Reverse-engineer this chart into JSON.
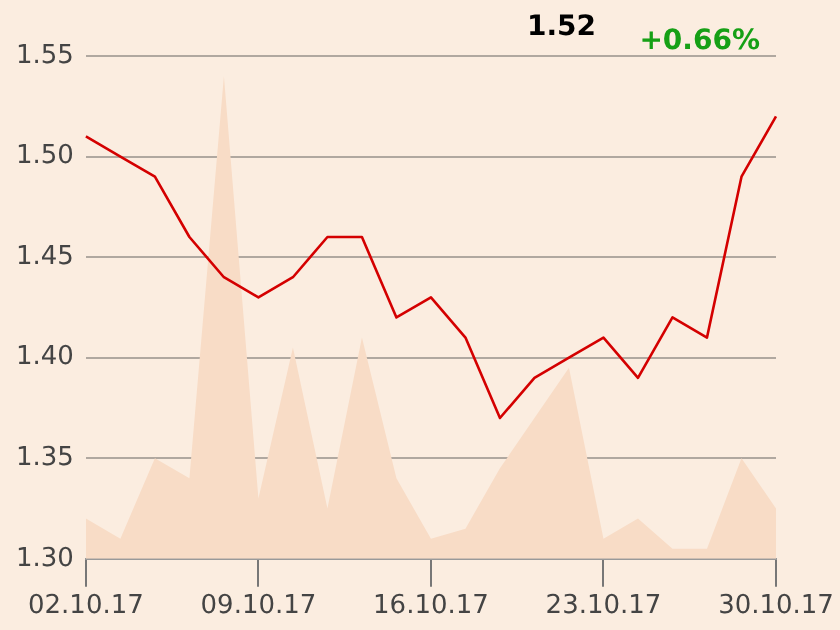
{
  "chart_data": {
    "type": "line",
    "annotations": [
      "1.52",
      "+0.66%"
    ],
    "categories": [
      "02.10.17",
      null,
      null,
      null,
      null,
      "09.10.17",
      null,
      null,
      null,
      null,
      "16.10.17",
      null,
      null,
      null,
      null,
      "23.10.17",
      null,
      null,
      null,
      null,
      "30.10.17"
    ],
    "series": [
      {
        "type": "area",
        "color": "#f8dcc6",
        "values": [
          1.32,
          1.31,
          1.35,
          1.34,
          1.54,
          1.33,
          1.405,
          1.325,
          1.41,
          1.34,
          1.31,
          1.315,
          1.345,
          1.37,
          1.395,
          1.31,
          1.32,
          1.305,
          1.305,
          1.35,
          1.325
        ]
      },
      {
        "type": "line",
        "color": "#d40000",
        "values": [
          1.51,
          1.5,
          1.49,
          1.46,
          1.44,
          1.43,
          1.44,
          1.46,
          1.46,
          1.42,
          1.43,
          1.41,
          1.37,
          1.39,
          1.4,
          1.41,
          1.39,
          1.42,
          1.41,
          1.49,
          1.52
        ]
      }
    ],
    "ylim": [
      1.3,
      1.55
    ],
    "yticks": [
      {
        "value": 1.3,
        "label": "1.30"
      },
      1.35,
      {
        "value": 1.4,
        "label": "1.40"
      },
      1.45,
      {
        "value": 1.5,
        "label": "1.50"
      },
      1.55
    ],
    "grid": "y",
    "legend": false,
    "marker": "none",
    "line_style": "solid"
  }
}
